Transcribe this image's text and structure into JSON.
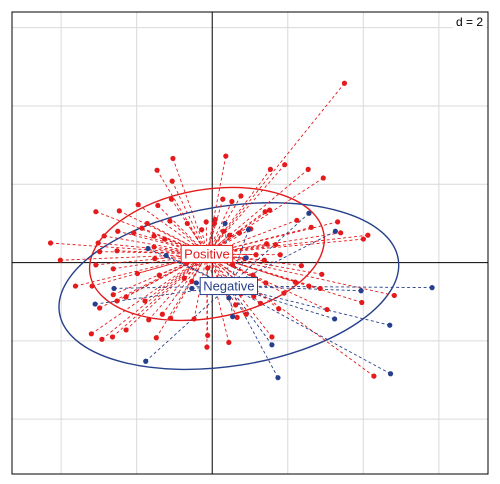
{
  "chart_data": {
    "type": "scatter",
    "d_label": "d = 2",
    "grid": true,
    "grid_step": 1,
    "xlim": [
      -2.65,
      3.65
    ],
    "ylim": [
      -2.7,
      3.2
    ],
    "colors": {
      "Positive": "#e41a1c",
      "Negative": "#27408b",
      "grid": "#d9d9d9",
      "axis": "#000000"
    },
    "groups": [
      {
        "name": "Positive",
        "color": "#e41a1c",
        "center": [
          -0.07,
          0.11
        ],
        "ellipse": {
          "rx": 1.57,
          "ry": 0.82,
          "angle_deg": -10
        },
        "points": [
          [
            1.75,
            2.29
          ],
          [
            -0.52,
            1.33
          ],
          [
            -0.73,
            1.18
          ],
          [
            0.77,
            1.19
          ],
          [
            1.27,
            1.19
          ],
          [
            1.47,
            1.08
          ],
          [
            0.38,
            0.85
          ],
          [
            0.14,
            0.81
          ],
          [
            0.26,
            0.78
          ],
          [
            -0.54,
            0.81
          ],
          [
            -0.72,
            0.73
          ],
          [
            -0.98,
            0.74
          ],
          [
            -1.23,
            0.66
          ],
          [
            -1.54,
            0.65
          ],
          [
            1.12,
            0.54
          ],
          [
            1.66,
            0.52
          ],
          [
            0.7,
            0.65
          ],
          [
            0.76,
            0.67
          ],
          [
            0.04,
            0.55
          ],
          [
            0.03,
            0.5
          ],
          [
            -0.08,
            0.52
          ],
          [
            -0.33,
            0.5
          ],
          [
            -0.56,
            0.53
          ],
          [
            -0.86,
            0.5
          ],
          [
            -0.93,
            0.44
          ],
          [
            -0.14,
            0.42
          ],
          [
            0.15,
            0.4
          ],
          [
            0.23,
            0.35
          ],
          [
            0.36,
            0.38
          ],
          [
            1.7,
            0.38
          ],
          [
            2.0,
            0.3
          ],
          [
            1.31,
            0.45
          ],
          [
            0.72,
            0.24
          ],
          [
            0.84,
            0.23
          ],
          [
            -0.63,
            0.3
          ],
          [
            -0.77,
            0.34
          ],
          [
            -1.04,
            0.38
          ],
          [
            -1.25,
            0.4
          ],
          [
            -1.43,
            0.34
          ],
          [
            -1.51,
            0.25
          ],
          [
            -1.49,
            0.14
          ],
          [
            -1.26,
            0.15
          ],
          [
            -0.77,
            0.2
          ],
          [
            -0.35,
            0.2
          ],
          [
            -0.03,
            0.2
          ],
          [
            0.24,
            0.18
          ],
          [
            0.43,
            0.05
          ],
          [
            0.58,
            0.1
          ],
          [
            0.69,
            0.03
          ],
          [
            -0.34,
            -0.01
          ],
          [
            -0.06,
            -0.07
          ],
          [
            0.27,
            -0.03
          ],
          [
            0.54,
            -0.16
          ],
          [
            0.71,
            -0.26
          ],
          [
            1.18,
            -0.04
          ],
          [
            1.45,
            -0.15
          ],
          [
            -2.14,
            0.25
          ],
          [
            -2.01,
            0.03
          ],
          [
            -1.54,
            -0.03
          ],
          [
            -1.31,
            -0.08
          ],
          [
            -0.99,
            -0.14
          ],
          [
            -0.7,
            -0.16
          ],
          [
            -0.37,
            -0.2
          ],
          [
            -0.27,
            -0.24
          ],
          [
            -0.06,
            -0.28
          ],
          [
            0.13,
            -0.33
          ],
          [
            0.38,
            -0.4
          ],
          [
            0.55,
            -0.43
          ],
          [
            0.64,
            -0.52
          ],
          [
            0.95,
            -0.39
          ],
          [
            1.1,
            -0.25
          ],
          [
            1.28,
            -0.3
          ],
          [
            -1.81,
            -0.3
          ],
          [
            -1.59,
            -0.3
          ],
          [
            -1.31,
            -0.41
          ],
          [
            -1.14,
            -0.44
          ],
          [
            -0.89,
            -0.49
          ],
          [
            -0.66,
            -0.66
          ],
          [
            -1.49,
            -0.58
          ],
          [
            -1.26,
            -0.49
          ],
          [
            -0.84,
            -0.73
          ],
          [
            -0.74,
            -0.96
          ],
          [
            -0.24,
            -0.72
          ],
          [
            0.33,
            -0.7
          ],
          [
            -0.06,
            -0.93
          ],
          [
            0.22,
            -1.02
          ],
          [
            0.45,
            -0.66
          ],
          [
            0.88,
            -0.59
          ],
          [
            -1.6,
            -0.91
          ],
          [
            -1.32,
            -0.95
          ],
          [
            -1.14,
            -0.86
          ],
          [
            0.79,
            -0.95
          ],
          [
            1.52,
            -0.6
          ],
          [
            1.43,
            -0.33
          ],
          [
            1.98,
            -0.51
          ],
          [
            2.41,
            -0.42
          ],
          [
            0.31,
            -0.54
          ],
          [
            -1.46,
            -0.98
          ],
          [
            -0.07,
            -1.08
          ],
          [
            -0.55,
            -0.71
          ],
          [
            2.14,
            -1.45
          ],
          [
            -0.76,
            0.05
          ],
          [
            0.18,
            1.36
          ],
          [
            0.96,
            1.25
          ],
          [
            -0.53,
            1.04
          ],
          [
            2.06,
            0.35
          ],
          [
            0.51,
            0.43
          ],
          [
            0.9,
            0.1
          ]
        ]
      },
      {
        "name": "Negative",
        "color": "#27408b",
        "center": [
          0.22,
          -0.3
        ],
        "ellipse": {
          "rx": 2.27,
          "ry": 1.02,
          "angle_deg": -9
        },
        "points": [
          [
            1.28,
            0.63
          ],
          [
            0.17,
            0.5
          ],
          [
            -0.85,
            0.18
          ],
          [
            1.63,
            0.4
          ],
          [
            -1.55,
            -0.53
          ],
          [
            1.97,
            -0.36
          ],
          [
            -0.88,
            -1.26
          ],
          [
            2.35,
            -0.8
          ],
          [
            0.22,
            -0.45
          ],
          [
            -0.27,
            -0.33
          ],
          [
            2.91,
            -0.32
          ],
          [
            0.79,
            -1.05
          ],
          [
            2.36,
            -1.42
          ],
          [
            0.87,
            -1.47
          ],
          [
            0.27,
            -0.69
          ],
          [
            -0.61,
            0.09
          ],
          [
            -0.21,
            -0.26
          ],
          [
            0.45,
            0.06
          ],
          [
            -1.3,
            -0.33
          ],
          [
            1.62,
            -0.72
          ],
          [
            0.48,
            0.42
          ]
        ]
      }
    ]
  }
}
